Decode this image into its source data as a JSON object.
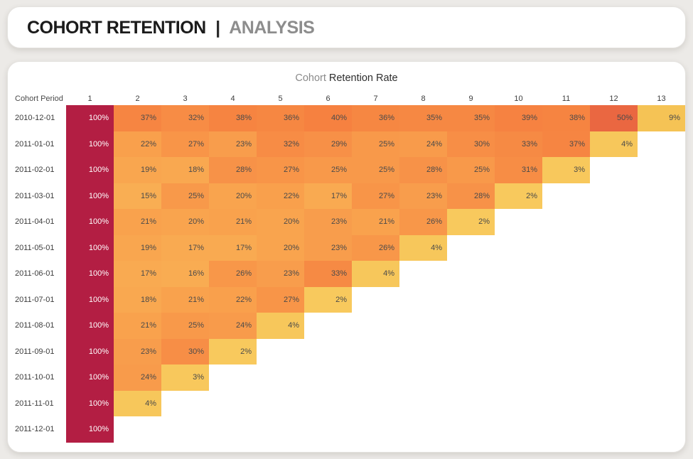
{
  "header": {
    "title_primary": "COHORT RETENTION",
    "separator": "|",
    "title_secondary": "ANALYSIS"
  },
  "chart": {
    "title_light": "Cohort",
    "title_bold": "Retention Rate",
    "corner_label": "Cohort Period"
  },
  "chart_data": {
    "type": "heatmap",
    "title": "Cohort Retention Rate",
    "row_header": "Cohort Period",
    "columns": [
      1,
      2,
      3,
      4,
      5,
      6,
      7,
      8,
      9,
      10,
      11,
      12,
      13
    ],
    "rows": [
      {
        "cohort": "2010-12-01",
        "values": [
          100,
          37,
          32,
          38,
          36,
          40,
          36,
          35,
          35,
          39,
          38,
          50,
          9
        ]
      },
      {
        "cohort": "2011-01-01",
        "values": [
          100,
          22,
          27,
          23,
          32,
          29,
          25,
          24,
          30,
          33,
          37,
          4
        ]
      },
      {
        "cohort": "2011-02-01",
        "values": [
          100,
          19,
          18,
          28,
          27,
          25,
          25,
          28,
          25,
          31,
          3
        ]
      },
      {
        "cohort": "2011-03-01",
        "values": [
          100,
          15,
          25,
          20,
          22,
          17,
          27,
          23,
          28,
          2
        ]
      },
      {
        "cohort": "2011-04-01",
        "values": [
          100,
          21,
          20,
          21,
          20,
          23,
          21,
          26,
          2
        ]
      },
      {
        "cohort": "2011-05-01",
        "values": [
          100,
          19,
          17,
          17,
          20,
          23,
          26,
          4
        ]
      },
      {
        "cohort": "2011-06-01",
        "values": [
          100,
          17,
          16,
          26,
          23,
          33,
          4
        ]
      },
      {
        "cohort": "2011-07-01",
        "values": [
          100,
          18,
          21,
          22,
          27,
          2
        ]
      },
      {
        "cohort": "2011-08-01",
        "values": [
          100,
          21,
          25,
          24,
          4
        ]
      },
      {
        "cohort": "2011-09-01",
        "values": [
          100,
          23,
          30,
          2
        ]
      },
      {
        "cohort": "2011-10-01",
        "values": [
          100,
          24,
          3
        ]
      },
      {
        "cohort": "2011-11-01",
        "values": [
          100,
          4
        ]
      },
      {
        "cohort": "2011-12-01",
        "values": [
          100
        ]
      }
    ],
    "value_suffix": "%",
    "color_scale": {
      "stops": [
        [
          0,
          "#F9CB5F"
        ],
        [
          9,
          "#F5C355"
        ],
        [
          15,
          "#F9AE53"
        ],
        [
          20,
          "#F9A44E"
        ],
        [
          25,
          "#F8994A"
        ],
        [
          30,
          "#F78E46"
        ],
        [
          35,
          "#F68843"
        ],
        [
          40,
          "#F68140"
        ],
        [
          50,
          "#EA6741"
        ],
        [
          100,
          "#B31E43"
        ]
      ]
    },
    "cell_text_color": "#4A4A4A",
    "full_cell_text_color": "#FFFFFF"
  },
  "colors": {
    "page_background": "#ECEAE7",
    "card_background": "#FFFFFF",
    "title_primary": "#1B1B1B",
    "title_secondary": "#8D8D8D",
    "chart_title_light": "#8A8A8A",
    "chart_title_bold": "#2E2E2E",
    "axis_label": "#3C3C3C"
  }
}
